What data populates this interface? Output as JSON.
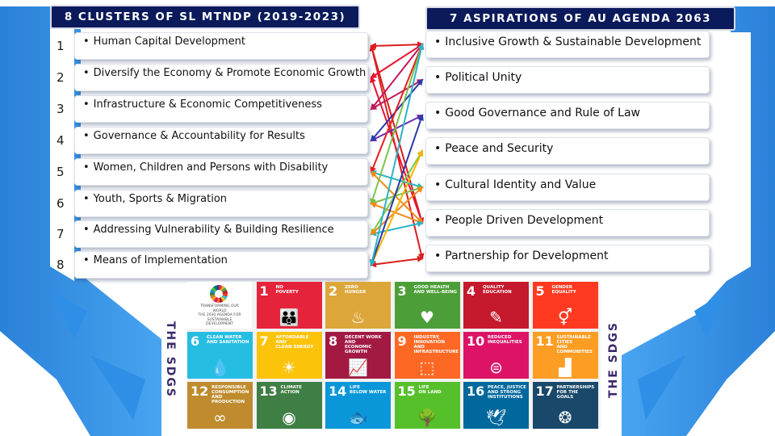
{
  "left_header": "8 CLUSTERS OF SL MTNDP (2019-2023)",
  "right_header": "7 ASPIRATIONS OF AU AGENDA 2063",
  "clusters": [
    {
      "num": "1",
      "label": "Human Capital Development"
    },
    {
      "num": "2",
      "label": "Diversify the Economy & Promote Economic Growth"
    },
    {
      "num": "3",
      "label": "Infrastructure & Economic Competitiveness"
    },
    {
      "num": "4",
      "label": "Governance & Accountability for Results"
    },
    {
      "num": "5",
      "label": "Women, Children and Persons with Disability"
    },
    {
      "num": "6",
      "label": "Youth, Sports & Migration"
    },
    {
      "num": "7",
      "label": "Addressing Vulnerability & Building Resilience"
    },
    {
      "num": "8",
      "label": "Means of Implementation"
    }
  ],
  "aspirations": [
    {
      "num": "1",
      "label": "Inclusive Growth & Sustainable Development"
    },
    {
      "num": "2",
      "label": "Political Unity"
    },
    {
      "num": "3",
      "label": "Good Governance and Rule of Law"
    },
    {
      "num": "4",
      "label": "Peace and Security"
    },
    {
      "num": "5",
      "label": "Cultural Identity and Value"
    },
    {
      "num": "6",
      "label": "People Driven Development"
    },
    {
      "num": "7",
      "label": "Partnership for Development"
    }
  ],
  "bullet": "•",
  "sdg_side_label": "THE SDGS",
  "sdg_logo_text": "TRANSFORMING OUR\nWORLD\nTHE 2030 AGENDA FOR\nSUSTAINABLE\nDEVELOPMENT",
  "sdgs": [
    {
      "num": "1",
      "title": "NO\nPOVERTY",
      "color": "#e5243b",
      "icon": "family-icon",
      "glyph": "👪"
    },
    {
      "num": "2",
      "title": "ZERO\nHUNGER",
      "color": "#dda63a",
      "icon": "bowl-icon",
      "glyph": "♨"
    },
    {
      "num": "3",
      "title": "GOOD HEALTH\nAND WELL-BEING",
      "color": "#4c9f38",
      "icon": "heartbeat-icon",
      "glyph": "♥"
    },
    {
      "num": "4",
      "title": "QUALITY\nEDUCATION",
      "color": "#c5192d",
      "icon": "book-icon",
      "glyph": "✎"
    },
    {
      "num": "5",
      "title": "GENDER\nEQUALITY",
      "color": "#ff3a21",
      "icon": "gender-icon",
      "glyph": "⚥"
    },
    {
      "num": "6",
      "title": "CLEAN WATER\nAND SANITATION",
      "color": "#26bde2",
      "icon": "water-drop-icon",
      "glyph": "💧"
    },
    {
      "num": "7",
      "title": "AFFORDABLE AND\nCLEAN ENERGY",
      "color": "#fcc30b",
      "icon": "sun-icon",
      "glyph": "☀"
    },
    {
      "num": "8",
      "title": "DECENT WORK AND\nECONOMIC GROWTH",
      "color": "#a21942",
      "icon": "growth-chart-icon",
      "glyph": "📈"
    },
    {
      "num": "9",
      "title": "INDUSTRY, INNOVATION\nAND INFRASTRUCTURE",
      "color": "#fd6925",
      "icon": "cubes-icon",
      "glyph": "⬚"
    },
    {
      "num": "10",
      "title": "REDUCED\nINEQUALITIES",
      "color": "#dd1367",
      "icon": "equal-icon",
      "glyph": "⊜"
    },
    {
      "num": "11",
      "title": "SUSTAINABLE CITIES\nAND COMMUNITIES",
      "color": "#fd9d24",
      "icon": "buildings-icon",
      "glyph": "▟"
    },
    {
      "num": "12",
      "title": "RESPONSIBLE\nCONSUMPTION\nAND PRODUCTION",
      "color": "#bf8b2e",
      "icon": "infinity-icon",
      "glyph": "∞"
    },
    {
      "num": "13",
      "title": "CLIMATE\nACTION",
      "color": "#3f7e44",
      "icon": "eye-globe-icon",
      "glyph": "◉"
    },
    {
      "num": "14",
      "title": "LIFE\nBELOW WATER",
      "color": "#0a97d9",
      "icon": "fish-icon",
      "glyph": "🐟"
    },
    {
      "num": "15",
      "title": "LIFE\nON LAND",
      "color": "#56c02b",
      "icon": "tree-icon",
      "glyph": "🌳"
    },
    {
      "num": "16",
      "title": "PEACE, JUSTICE\nAND STRONG\nINSTITUTIONS",
      "color": "#00689d",
      "icon": "dove-icon",
      "glyph": "🕊"
    },
    {
      "num": "17",
      "title": "PARTNERSHIPS\nFOR THE GOALS",
      "color": "#19486a",
      "icon": "rings-icon",
      "glyph": "❂"
    }
  ],
  "links": [
    {
      "from": "1",
      "to": "1",
      "color": "#d91e1e"
    },
    {
      "from": "1",
      "to": "6",
      "color": "#d91e1e"
    },
    {
      "from": "1",
      "to": "7",
      "color": "#d91e1e"
    },
    {
      "from": "2",
      "to": "1",
      "color": "#e8132f"
    },
    {
      "from": "2",
      "to": "6",
      "color": "#e8132f"
    },
    {
      "from": "3",
      "to": "1",
      "color": "#c0185b"
    },
    {
      "from": "3",
      "to": "2",
      "color": "#c0185b"
    },
    {
      "from": "4",
      "to": "3",
      "color": "#6b2fae"
    },
    {
      "from": "4",
      "to": "2",
      "color": "#2b3aa8"
    },
    {
      "from": "5",
      "to": "1",
      "color": "#e81d1d"
    },
    {
      "from": "5",
      "to": "5",
      "color": "#2bb3c8"
    },
    {
      "from": "5",
      "to": "6",
      "color": "#f28b1a"
    },
    {
      "from": "6",
      "to": "1",
      "color": "#79c24a"
    },
    {
      "from": "6",
      "to": "5",
      "color": "#79c24a"
    },
    {
      "from": "6",
      "to": "6",
      "color": "#f28b1a"
    },
    {
      "from": "7",
      "to": "4",
      "color": "#7ac943"
    },
    {
      "from": "7",
      "to": "6",
      "color": "#2bb3c8"
    },
    {
      "from": "7",
      "to": "5",
      "color": "#f28b1a"
    },
    {
      "from": "8",
      "to": "7",
      "color": "#d91e1e"
    },
    {
      "from": "8",
      "to": "4",
      "color": "#f7b500"
    },
    {
      "from": "8",
      "to": "3",
      "color": "#2b3aa8"
    },
    {
      "from": "8",
      "to": "1",
      "color": "#2bb3c8"
    }
  ]
}
